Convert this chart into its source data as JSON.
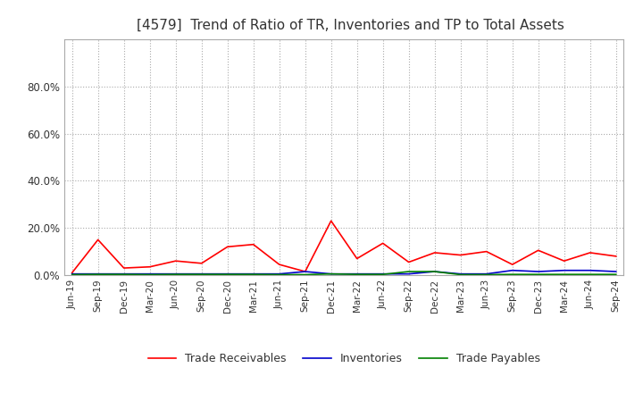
{
  "title": "[4579]  Trend of Ratio of TR, Inventories and TP to Total Assets",
  "x_labels": [
    "Jun-19",
    "Sep-19",
    "Dec-19",
    "Mar-20",
    "Jun-20",
    "Sep-20",
    "Dec-20",
    "Mar-21",
    "Jun-21",
    "Sep-21",
    "Dec-21",
    "Mar-22",
    "Jun-22",
    "Sep-22",
    "Dec-22",
    "Mar-23",
    "Jun-23",
    "Sep-23",
    "Dec-23",
    "Mar-24",
    "Jun-24",
    "Sep-24"
  ],
  "trade_receivables": [
    1.0,
    15.0,
    3.0,
    3.5,
    6.0,
    5.0,
    12.0,
    13.0,
    4.5,
    1.5,
    23.0,
    7.0,
    13.5,
    5.5,
    9.5,
    8.5,
    10.0,
    4.5,
    10.5,
    6.0,
    9.5,
    8.0
  ],
  "inventories": [
    0.5,
    0.5,
    0.5,
    0.5,
    0.5,
    0.5,
    0.5,
    0.5,
    0.5,
    1.5,
    0.5,
    0.5,
    0.5,
    0.5,
    1.5,
    0.5,
    0.5,
    2.0,
    1.5,
    2.0,
    2.0,
    1.5
  ],
  "trade_payables": [
    0.2,
    0.3,
    0.3,
    0.2,
    0.3,
    0.3,
    0.3,
    0.3,
    0.2,
    0.2,
    0.5,
    0.3,
    0.3,
    1.5,
    1.5,
    0.2,
    0.2,
    0.3,
    0.3,
    0.3,
    0.3,
    0.3
  ],
  "tr_color": "#ff0000",
  "inv_color": "#0000cc",
  "tp_color": "#008000",
  "ylim": [
    0,
    100
  ],
  "yticks": [
    0,
    20,
    40,
    60,
    80
  ],
  "background_color": "#ffffff",
  "grid_color": "#aaaaaa"
}
